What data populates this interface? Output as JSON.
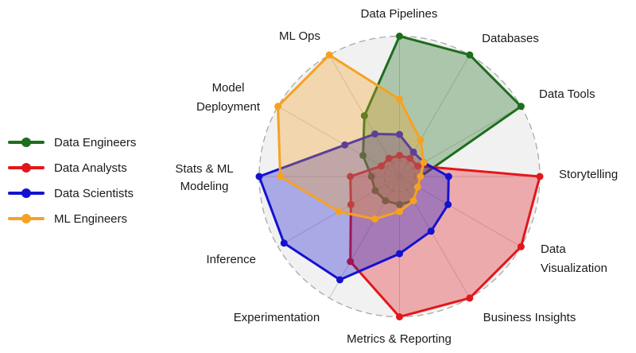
{
  "chart_data": {
    "type": "radar",
    "title": "",
    "categories": [
      "Data Pipelines",
      "Databases",
      "Data Tools",
      "Storytelling",
      "Data Visualization",
      "Business Insights",
      "Metrics & Reporting",
      "Experimentation",
      "Inference",
      "Stats & ML Modeling",
      "Model Deployment",
      "ML Ops"
    ],
    "label_lines": [
      [
        "Data Pipelines"
      ],
      [
        "Databases"
      ],
      [
        "Data Tools"
      ],
      [
        "Storytelling"
      ],
      [
        "Data",
        "Visualization"
      ],
      [
        "Business Insights"
      ],
      [
        "Metrics & Reporting"
      ],
      [
        "Experimentation"
      ],
      [
        "Inference"
      ],
      [
        "Stats & ML",
        "Modeling"
      ],
      [
        "Model",
        "Deployment"
      ],
      [
        "ML Ops"
      ]
    ],
    "axis_range": [
      0,
      10
    ],
    "grid": {
      "outer_circle": "dashed",
      "inner_circle": "dashed",
      "spokes": true,
      "disk_fill": "#f1f1f1",
      "spoke_color": "#c9c9c9",
      "circle_color": "#a8a8a8"
    },
    "legend_position": "left",
    "series": [
      {
        "name": "Data Engineers",
        "color": "#1d6e1d",
        "values": [
          10,
          10,
          10,
          1.5,
          1.5,
          2,
          2,
          2,
          2,
          2,
          3,
          5
        ]
      },
      {
        "name": "Data Analysts",
        "color": "#e3171b",
        "values": [
          1.5,
          1.5,
          1.5,
          10,
          10,
          10,
          10,
          7,
          4,
          3.5,
          1.5,
          1.5
        ]
      },
      {
        "name": "Data Scientists",
        "color": "#1412cf",
        "values": [
          3,
          2,
          2,
          3.5,
          4,
          4.5,
          5.5,
          8.5,
          9.5,
          10,
          4.5,
          3.5
        ]
      },
      {
        "name": "ML Engineers",
        "color": "#f5a223",
        "values": [
          5.5,
          3,
          2,
          1.5,
          1.5,
          2,
          2.5,
          3.5,
          5,
          8.5,
          10,
          10
        ]
      }
    ]
  }
}
